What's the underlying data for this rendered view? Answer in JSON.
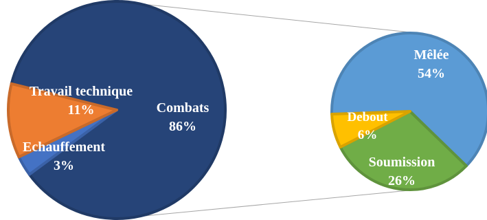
{
  "chart_data": [
    {
      "type": "pie",
      "title": "",
      "slices": [
        {
          "label": "Combats",
          "value": 86,
          "display": "86%",
          "color": "#264478"
        },
        {
          "label": "Echauffement",
          "value": 3,
          "display": "3%",
          "color": "#4472C4"
        },
        {
          "label": "Travail technique",
          "value": 11,
          "display": "11%",
          "color": "#ED7D31"
        }
      ]
    },
    {
      "type": "pie",
      "title": "",
      "slices": [
        {
          "label": "Mêlée",
          "value": 54,
          "display": "54%",
          "color": "#5B9BD5"
        },
        {
          "label": "Soumission",
          "value": 26,
          "display": "26%",
          "color": "#70AD47"
        },
        {
          "label": "Debout",
          "value": 6,
          "display": "6%",
          "color": "#FFC000"
        }
      ]
    }
  ],
  "connector_color": "#A6A6A6"
}
